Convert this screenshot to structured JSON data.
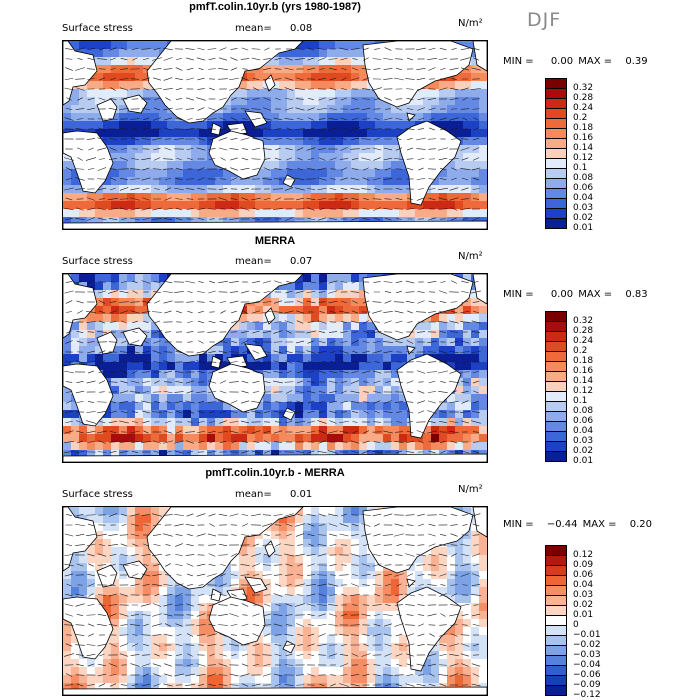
{
  "season": "DJF",
  "panels": [
    {
      "title": "pmfT.colin.10yr.b (yrs 1980-1987)",
      "variable": "Surface stress",
      "mean_label": "mean=",
      "mean_value": "0.08",
      "units": "N/m²",
      "min_label": "MIN =",
      "min_value": "0.00",
      "max_label": "MAX =",
      "max_value": "0.39",
      "palette": "full",
      "levels": [
        "0.32",
        "0.28",
        "0.24",
        "0.2",
        "0.18",
        "0.16",
        "0.14",
        "0.12",
        "0.1",
        "0.08",
        "0.06",
        "0.04",
        "0.03",
        "0.02",
        "0.01"
      ]
    },
    {
      "title": "MERRA",
      "variable": "Surface stress",
      "mean_label": "mean=",
      "mean_value": "0.07",
      "units": "N/m²",
      "min_label": "MIN =",
      "min_value": "0.00",
      "max_label": "MAX =",
      "max_value": "0.83",
      "palette": "full",
      "levels": [
        "0.32",
        "0.28",
        "0.24",
        "0.2",
        "0.18",
        "0.16",
        "0.14",
        "0.12",
        "0.1",
        "0.08",
        "0.06",
        "0.04",
        "0.03",
        "0.02",
        "0.01"
      ]
    },
    {
      "title": "pmfT.colin.10yr.b - MERRA",
      "variable": "Surface stress",
      "mean_label": "mean=",
      "mean_value": "0.01",
      "units": "N/m²",
      "min_label": "MIN =",
      "min_value": "−0.44",
      "max_label": "MAX =",
      "max_value": "0.20",
      "palette": "diff",
      "levels": [
        "0.12",
        "0.09",
        "0.06",
        "0.04",
        "0.03",
        "0.02",
        "0.01",
        "0",
        "−0.01",
        "−0.02",
        "−0.03",
        "−0.04",
        "−0.06",
        "−0.09",
        "−0.12"
      ]
    }
  ],
  "colors": {
    "full": [
      "#7a0000",
      "#a80d0d",
      "#cc2a14",
      "#e04a20",
      "#ef6a3a",
      "#f58a5c",
      "#f9aa86",
      "#fbd0bc",
      "#e2ebfa",
      "#b8ccf2",
      "#8eabec",
      "#6489e4",
      "#3d66d8",
      "#1c41c4",
      "#0a1f96"
    ],
    "diff": [
      "#7a0000",
      "#b01a10",
      "#d83a1e",
      "#ee6536",
      "#f58e64",
      "#f9b293",
      "#fcd6c3",
      "#ffffff",
      "#d4e2f7",
      "#a9c3ef",
      "#7ea2e6",
      "#5681dc",
      "#305fce",
      "#173fb8",
      "#0a1f96"
    ]
  }
}
